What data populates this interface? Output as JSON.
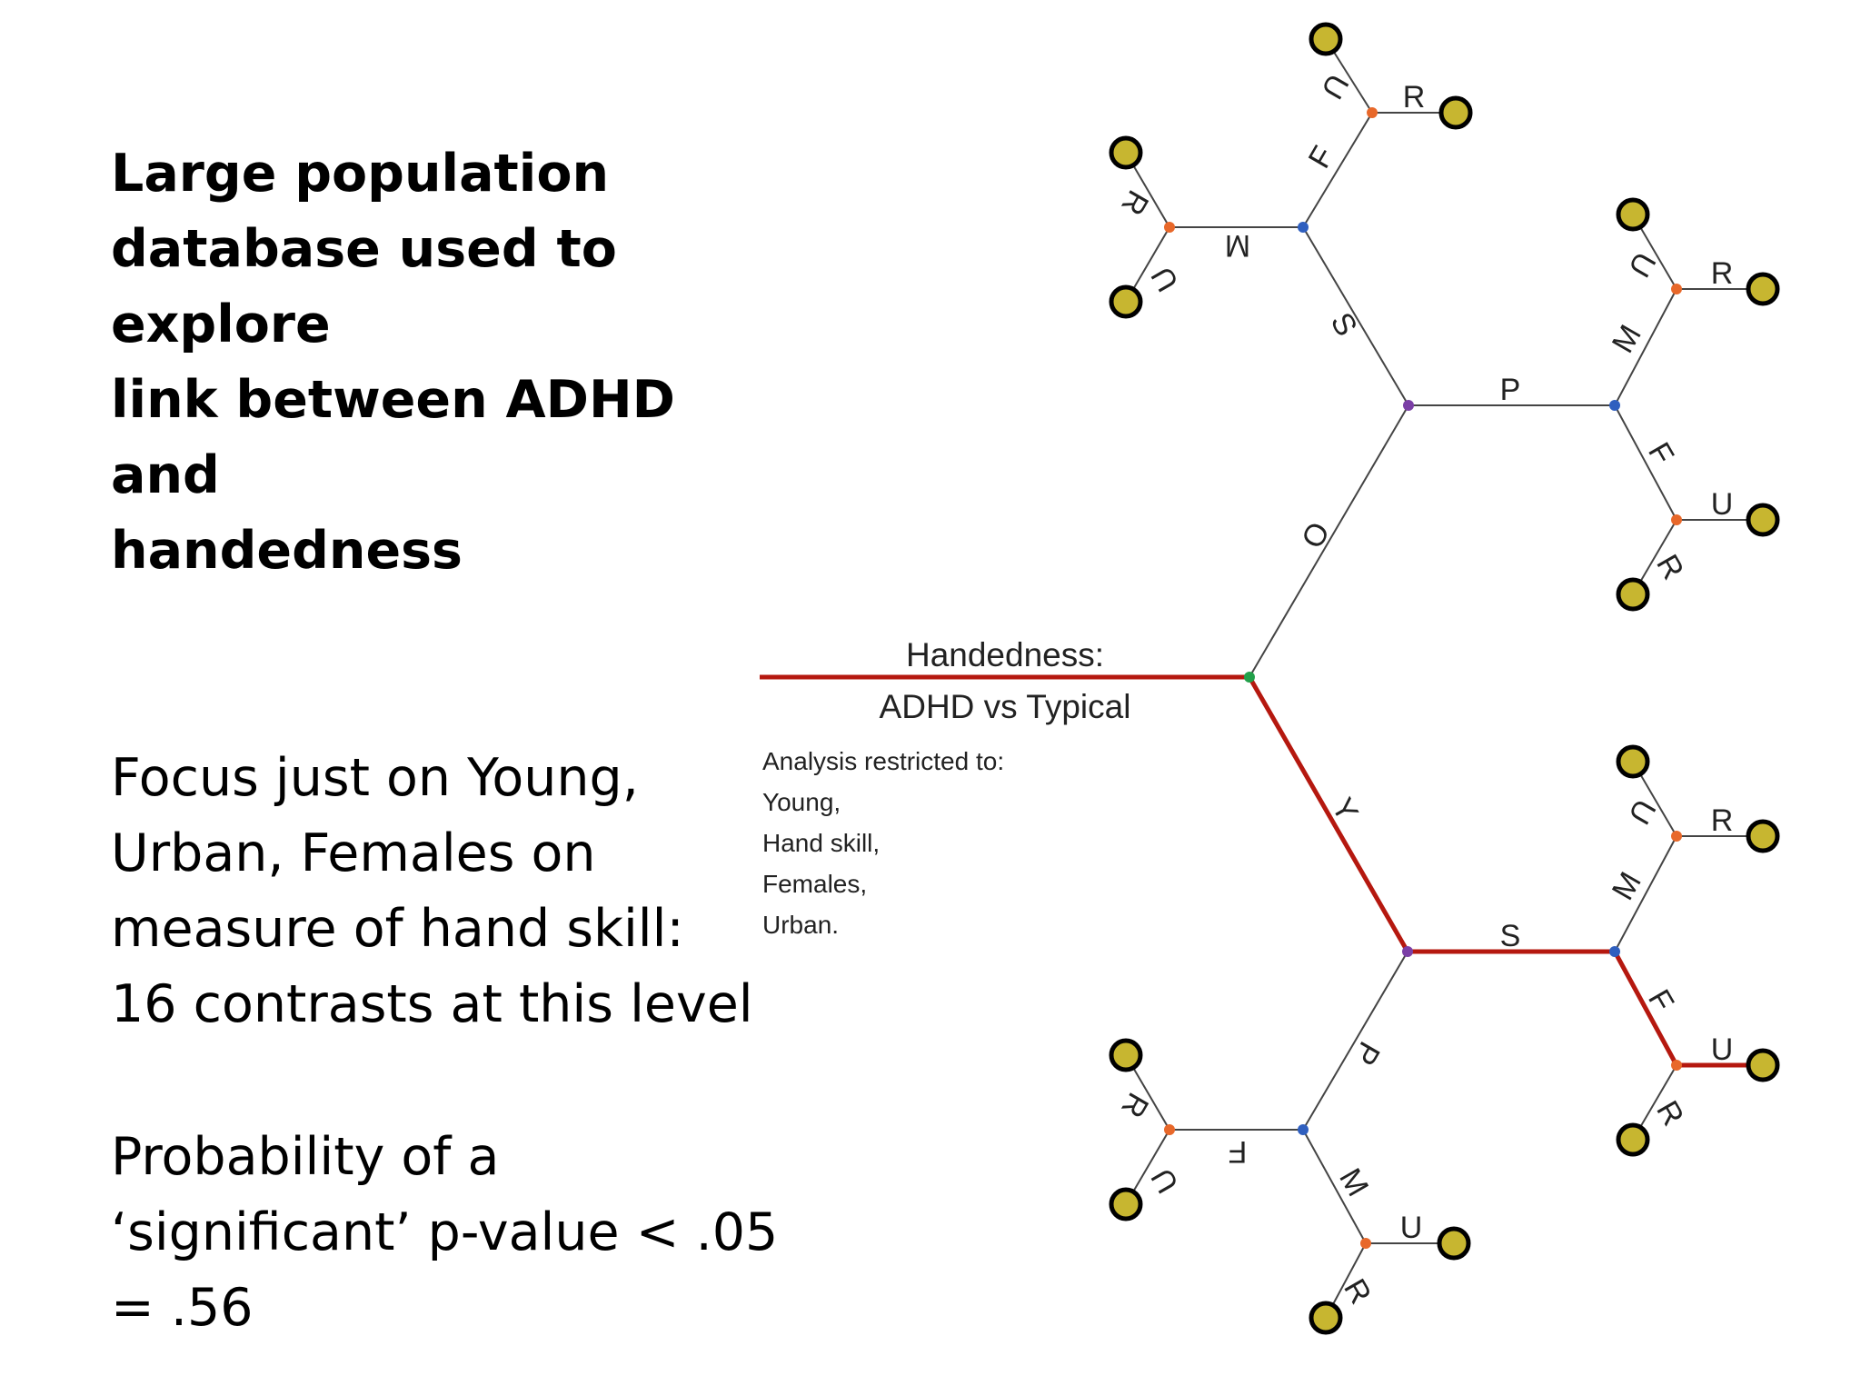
{
  "title": {
    "lines": [
      "Large population",
      "database used to explore",
      "link between ADHD and",
      "handedness"
    ]
  },
  "focus": {
    "lines": [
      "Focus just on Young,",
      "Urban, Females on",
      "measure of hand skill:",
      "16 contrasts at this level"
    ]
  },
  "probability": {
    "lines": [
      "Probability of a",
      "‘significant’ p-value < .05",
      "= .56"
    ]
  },
  "tree": {
    "heading_line1": "Handedness:",
    "heading_line2": "ADHD vs Typical",
    "restriction_lines": [
      "Analysis restricted to:",
      "Young,",
      "Hand skill,",
      "Females,",
      "Urban."
    ],
    "highlight_color": "#b5180f",
    "node_colors": {
      "root": "#22a04a",
      "level1": "#7b3fa6",
      "level2": "#2f5fbf",
      "level3": "#e8682a",
      "leaf_fill": "#c7b630"
    },
    "branches": {
      "old": "O",
      "young": "Y",
      "old_s": "S",
      "old_p": "P",
      "young_s": "S",
      "young_p": "P",
      "os_m": "M",
      "os_f": "F",
      "op_m": "M",
      "op_f": "F",
      "ys_m": "M",
      "ys_f": "F",
      "yp_f": "F",
      "yp_m": "M",
      "u": "U",
      "r": "R"
    }
  }
}
